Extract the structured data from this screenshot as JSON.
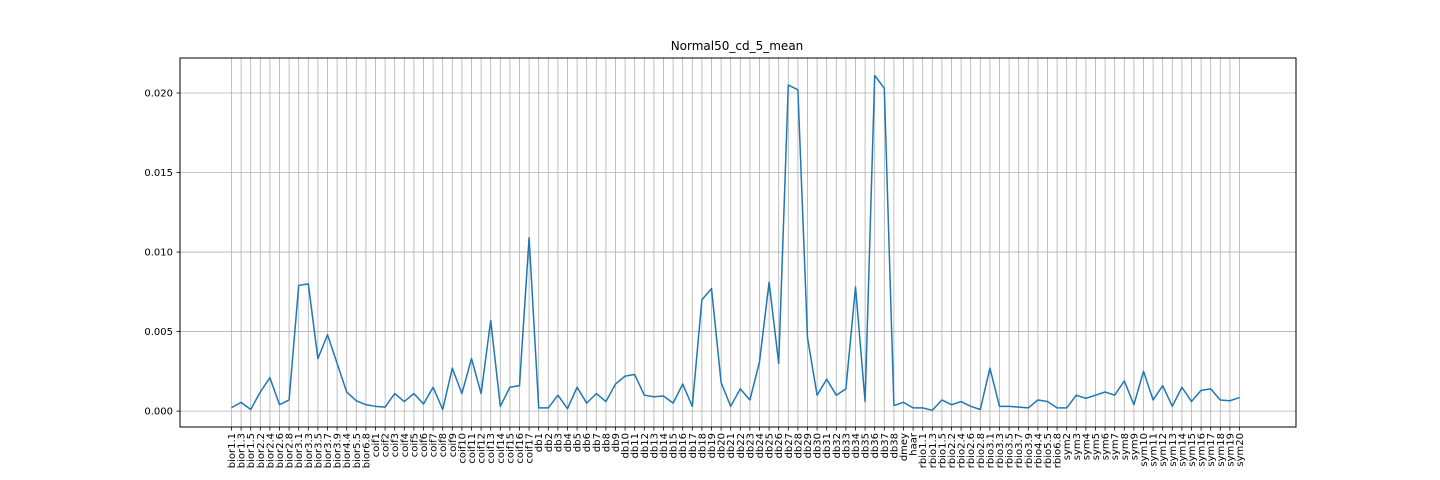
{
  "chart_data": {
    "type": "line",
    "title": "Normal50_cd_5_mean",
    "xlabel": "",
    "ylabel": "",
    "ylim": [
      -0.001,
      0.0222
    ],
    "grid": true,
    "line_color": "#1f77b4",
    "yticks": [
      {
        "value": 0.0,
        "label": "0.000"
      },
      {
        "value": 0.005,
        "label": "0.005"
      },
      {
        "value": 0.01,
        "label": "0.010"
      },
      {
        "value": 0.015,
        "label": "0.015"
      },
      {
        "value": 0.02,
        "label": "0.020"
      }
    ],
    "categories": [
      "bior1.1",
      "bior1.3",
      "bior1.5",
      "bior2.2",
      "bior2.4",
      "bior2.6",
      "bior2.8",
      "bior3.1",
      "bior3.3",
      "bior3.5",
      "bior3.7",
      "bior3.9",
      "bior4.4",
      "bior5.5",
      "bior6.8",
      "coif1",
      "coif2",
      "coif3",
      "coif4",
      "coif5",
      "coif6",
      "coif7",
      "coif8",
      "coif9",
      "coif10",
      "coif11",
      "coif12",
      "coif13",
      "coif14",
      "coif15",
      "coif16",
      "coif17",
      "db1",
      "db2",
      "db3",
      "db4",
      "db5",
      "db6",
      "db7",
      "db8",
      "db9",
      "db10",
      "db11",
      "db12",
      "db13",
      "db14",
      "db15",
      "db16",
      "db17",
      "db18",
      "db19",
      "db20",
      "db21",
      "db22",
      "db23",
      "db24",
      "db25",
      "db26",
      "db27",
      "db28",
      "db29",
      "db30",
      "db31",
      "db32",
      "db33",
      "db34",
      "db35",
      "db36",
      "db37",
      "db38",
      "dmey",
      "haar",
      "rbio1.1",
      "rbio1.3",
      "rbio1.5",
      "rbio2.2",
      "rbio2.4",
      "rbio2.6",
      "rbio2.8",
      "rbio3.1",
      "rbio3.3",
      "rbio3.5",
      "rbio3.7",
      "rbio3.9",
      "rbio4.4",
      "rbio5.5",
      "rbio6.8",
      "sym2",
      "sym3",
      "sym4",
      "sym5",
      "sym6",
      "sym7",
      "sym8",
      "sym9",
      "sym10",
      "sym11",
      "sym12",
      "sym13",
      "sym14",
      "sym15",
      "sym16",
      "sym17",
      "sym18",
      "sym19",
      "sym20"
    ],
    "values": [
      0.00022,
      0.00055,
      0.0001,
      0.0012,
      0.0021,
      0.0004,
      0.0007,
      0.0079,
      0.008,
      0.0033,
      0.0048,
      0.003,
      0.0012,
      0.00065,
      0.0004,
      0.0003,
      0.00025,
      0.0011,
      0.0006,
      0.0011,
      0.00045,
      0.0015,
      0.0001,
      0.0027,
      0.0011,
      0.0033,
      0.0011,
      0.0057,
      0.0003,
      0.0015,
      0.0016,
      0.0109,
      0.0002,
      0.0002,
      0.001,
      0.00015,
      0.0015,
      0.0005,
      0.0011,
      0.0006,
      0.0017,
      0.0022,
      0.0023,
      0.001,
      0.0009,
      0.00095,
      0.0005,
      0.0017,
      0.0003,
      0.007,
      0.0077,
      0.0018,
      0.0003,
      0.0014,
      0.0007,
      0.0031,
      0.0081,
      0.003,
      0.0205,
      0.0202,
      0.0046,
      0.001,
      0.002,
      0.001,
      0.0014,
      0.0078,
      0.0006,
      0.0211,
      0.0203,
      0.00035,
      0.00055,
      0.0002,
      0.0002,
      5e-05,
      0.0007,
      0.0004,
      0.0006,
      0.0003,
      0.0001,
      0.0027,
      0.0003,
      0.0003,
      0.00025,
      0.0002,
      0.0007,
      0.0006,
      0.0002,
      0.0002,
      0.001,
      0.0008,
      0.001,
      0.0012,
      0.001,
      0.0019,
      0.0004,
      0.0025,
      0.0007,
      0.0016,
      0.0003,
      0.0015,
      0.0006,
      0.0013,
      0.0014,
      0.0007,
      0.00065,
      0.00085
    ]
  }
}
